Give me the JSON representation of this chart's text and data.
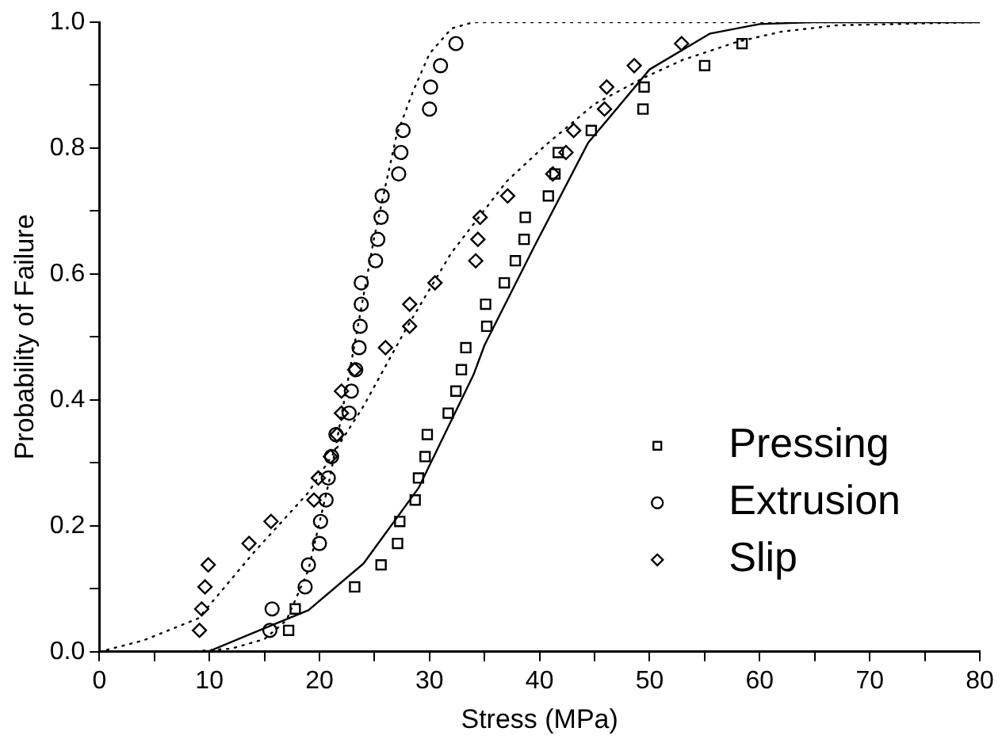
{
  "chart_data": {
    "type": "scatter",
    "xlabel": "Stress (MPa)",
    "ylabel": "Probability of Failure",
    "xlim": [
      0,
      80
    ],
    "ylim": [
      0,
      1.0
    ],
    "xticks": [
      0,
      {
        "value": 5,
        "label": null
      },
      10,
      {
        "value": 15,
        "label": null
      },
      20,
      {
        "value": 25,
        "label": null
      },
      30,
      {
        "value": 35,
        "label": null
      },
      40,
      {
        "value": 45,
        "label": null
      },
      50,
      {
        "value": 55,
        "label": null
      },
      60,
      {
        "value": 65,
        "label": null
      },
      70,
      {
        "value": 75,
        "label": null
      },
      80
    ],
    "yticks": [
      {
        "value": 0,
        "label": "0.0"
      },
      {
        "value": 0.1,
        "label": null
      },
      0.2,
      {
        "value": 0.3,
        "label": null
      },
      0.4,
      {
        "value": 0.5,
        "label": null
      },
      0.6,
      {
        "value": 0.7,
        "label": null
      },
      0.8,
      {
        "value": 0.9,
        "label": null
      },
      {
        "value": 1.0,
        "label": "1.0"
      }
    ],
    "grid": false,
    "legend": "bottom right",
    "series": [
      {
        "name": "Pressing",
        "marker": "square",
        "color": "#000000",
        "x": [
          17.2,
          17.8,
          23.2,
          25.6,
          27.1,
          27.3,
          28.7,
          29.0,
          29.6,
          29.8,
          31.7,
          32.4,
          32.9,
          33.3,
          35.2,
          35.1,
          36.8,
          37.8,
          38.6,
          38.7,
          40.8,
          41.4,
          41.7,
          44.7,
          49.4,
          49.5,
          55.0,
          58.4
        ],
        "values": [
          0.034,
          0.068,
          0.103,
          0.138,
          0.172,
          0.207,
          0.241,
          0.276,
          0.31,
          0.345,
          0.379,
          0.414,
          0.448,
          0.483,
          0.517,
          0.552,
          0.586,
          0.621,
          0.655,
          0.69,
          0.724,
          0.759,
          0.793,
          0.828,
          0.862,
          0.897,
          0.931,
          0.966
        ]
      },
      {
        "name": "Extrusion",
        "marker": "circle",
        "color": "#000000",
        "x": [
          15.5,
          15.7,
          18.7,
          19.0,
          20.0,
          20.1,
          20.6,
          20.8,
          21.1,
          21.5,
          22.7,
          22.9,
          23.3,
          23.6,
          23.7,
          23.8,
          23.8,
          25.1,
          25.3,
          25.6,
          25.7,
          27.2,
          27.4,
          27.6,
          30.0,
          30.1,
          31.0,
          32.4
        ],
        "values": [
          0.034,
          0.068,
          0.103,
          0.138,
          0.172,
          0.207,
          0.241,
          0.276,
          0.31,
          0.345,
          0.379,
          0.414,
          0.448,
          0.483,
          0.517,
          0.552,
          0.586,
          0.621,
          0.655,
          0.69,
          0.724,
          0.759,
          0.793,
          0.828,
          0.862,
          0.897,
          0.931,
          0.966
        ]
      },
      {
        "name": "Slip",
        "marker": "diamond",
        "color": "#000000",
        "x": [
          9.1,
          9.3,
          9.6,
          9.9,
          13.6,
          15.6,
          19.5,
          19.9,
          21.0,
          21.6,
          22.0,
          22.0,
          23.2,
          26.0,
          28.2,
          28.2,
          30.5,
          34.2,
          34.4,
          34.6,
          37.1,
          41.2,
          42.4,
          43.1,
          45.9,
          46.1,
          48.6,
          52.9
        ],
        "values": [
          0.034,
          0.068,
          0.103,
          0.138,
          0.172,
          0.207,
          0.241,
          0.276,
          0.31,
          0.345,
          0.379,
          0.414,
          0.448,
          0.483,
          0.517,
          0.552,
          0.586,
          0.621,
          0.655,
          0.69,
          0.724,
          0.759,
          0.793,
          0.828,
          0.862,
          0.897,
          0.931,
          0.966
        ]
      },
      {
        "type": "line",
        "marker": "none",
        "line_style": "solid",
        "color": "#000000",
        "x": [
          0,
          5,
          10,
          14,
          19,
          24,
          29,
          34,
          35,
          39.5,
          44.4,
          50,
          55.5,
          60,
          65,
          80
        ],
        "values": [
          0,
          0,
          0.001,
          0.03,
          0.066,
          0.14,
          0.26,
          0.44,
          0.487,
          0.643,
          0.808,
          0.925,
          0.982,
          0.997,
          1,
          1
        ]
      },
      {
        "type": "line",
        "marker": "none",
        "line_style": "dotted",
        "color": "#000000",
        "x": [
          8,
          12,
          15,
          17,
          19,
          21,
          23,
          25,
          27,
          28.5,
          30,
          32,
          34,
          40,
          80
        ],
        "values": [
          0,
          0.005,
          0.02,
          0.05,
          0.13,
          0.28,
          0.47,
          0.66,
          0.82,
          0.89,
          0.95,
          0.99,
          1,
          1,
          1
        ]
      },
      {
        "type": "line",
        "marker": "none",
        "line_style": "dotted",
        "color": "#000000",
        "x": [
          0,
          4,
          9,
          14,
          19,
          24,
          28,
          32,
          37,
          40.5,
          45,
          49.5,
          53,
          58,
          62,
          67,
          80
        ],
        "values": [
          0,
          0.018,
          0.053,
          0.157,
          0.253,
          0.39,
          0.517,
          0.634,
          0.747,
          0.804,
          0.87,
          0.912,
          0.94,
          0.969,
          0.985,
          0.995,
          1
        ]
      }
    ]
  }
}
